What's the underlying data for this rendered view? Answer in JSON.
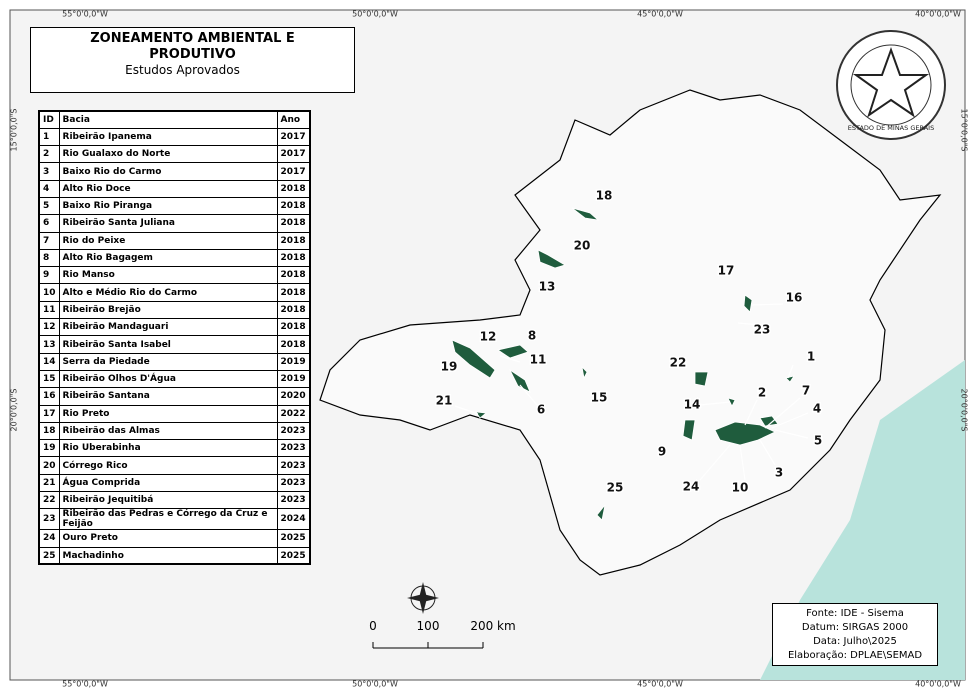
{
  "title_block": {
    "title": "ZONEAMENTO AMBIENTAL E PRODUTIVO",
    "subtitle": "Estudos Aprovados"
  },
  "table": {
    "headers": [
      "ID",
      "Bacia",
      "Ano"
    ],
    "rows": [
      [
        "1",
        "Ribeirão Ipanema",
        "2017"
      ],
      [
        "2",
        "Rio Gualaxo do Norte",
        "2017"
      ],
      [
        "3",
        "Baixo Rio do Carmo",
        "2017"
      ],
      [
        "4",
        "Alto Rio Doce",
        "2018"
      ],
      [
        "5",
        "Baixo Rio Piranga",
        "2018"
      ],
      [
        "6",
        "Ribeirão Santa Juliana",
        "2018"
      ],
      [
        "7",
        "Rio do Peixe",
        "2018"
      ],
      [
        "8",
        "Alto Rio Bagagem",
        "2018"
      ],
      [
        "9",
        "Rio Manso",
        "2018"
      ],
      [
        "10",
        "Alto e Médio Rio do Carmo",
        "2018"
      ],
      [
        "11",
        "Ribeirão Brejão",
        "2018"
      ],
      [
        "12",
        "Ribeirão Mandaguari",
        "2018"
      ],
      [
        "13",
        "Ribeirão Santa Isabel",
        "2018"
      ],
      [
        "14",
        "Serra da Piedade",
        "2019"
      ],
      [
        "15",
        "Ribeirão Olhos D'Água",
        "2019"
      ],
      [
        "16",
        "Ribeirão Santana",
        "2020"
      ],
      [
        "17",
        "Rio Preto",
        "2022"
      ],
      [
        "18",
        "Ribeirão das Almas",
        "2023"
      ],
      [
        "19",
        "Rio Uberabinha",
        "2023"
      ],
      [
        "20",
        "Córrego Rico",
        "2023"
      ],
      [
        "21",
        "Água Comprida",
        "2023"
      ],
      [
        "22",
        "Ribeirão Jequitibá",
        "2023"
      ],
      [
        "23",
        "Ribeirão das Pedras e Córrego da Cruz e Feijão",
        "2024"
      ],
      [
        "24",
        "Ouro Preto",
        "2025"
      ],
      [
        "25",
        "Machadinho",
        "2025"
      ]
    ]
  },
  "coordinates": {
    "top": [
      "55°0'0,0\"W",
      "50°0'0,0\"W",
      "45°0'0,0\"W",
      "40°0'0,0\"W"
    ],
    "bottom": [
      "55°0'0,0\"W",
      "50°0'0,0\"W",
      "45°0'0,0\"W",
      "40°0'0,0\"W"
    ],
    "left": [
      "15°0'0,0\"S",
      "20°0'0,0\"S"
    ],
    "right": [
      "15°0'0,0\"S",
      "20°0'0,0\"S"
    ]
  },
  "map_labels": [
    "1",
    "2",
    "3",
    "4",
    "5",
    "6",
    "7",
    "8",
    "9",
    "10",
    "11",
    "12",
    "13",
    "14",
    "15",
    "16",
    "17",
    "18",
    "19",
    "20",
    "21",
    "22",
    "23",
    "24",
    "25"
  ],
  "scale_bar": {
    "labels": [
      "0",
      "100",
      "200 km"
    ]
  },
  "source": {
    "lines": [
      "Fonte: IDE - Sisema",
      "Datum: SIRGAS 2000",
      "Data: Julho\\2025",
      "Elaboração: DPLAE\\SEMAD"
    ]
  },
  "seal": {
    "text": "ESTADO DE MINAS GERAIS"
  }
}
